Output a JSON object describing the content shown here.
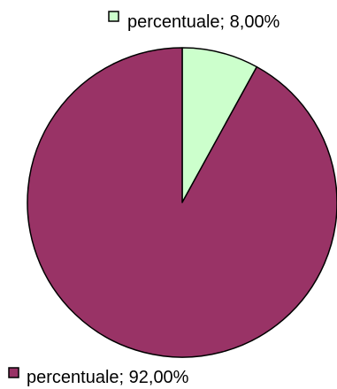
{
  "chart_data": {
    "type": "pie",
    "slices": [
      {
        "label": "percentuale; 8,00%",
        "value": 8.0,
        "color": "#ccffcc"
      },
      {
        "label": "percentuale; 92,00%",
        "value": 92.0,
        "color": "#993366"
      }
    ],
    "start_angle": "12 o'clock",
    "direction": "clockwise",
    "slice_border_color": "#000000",
    "legend_marker_border": "#000000"
  }
}
